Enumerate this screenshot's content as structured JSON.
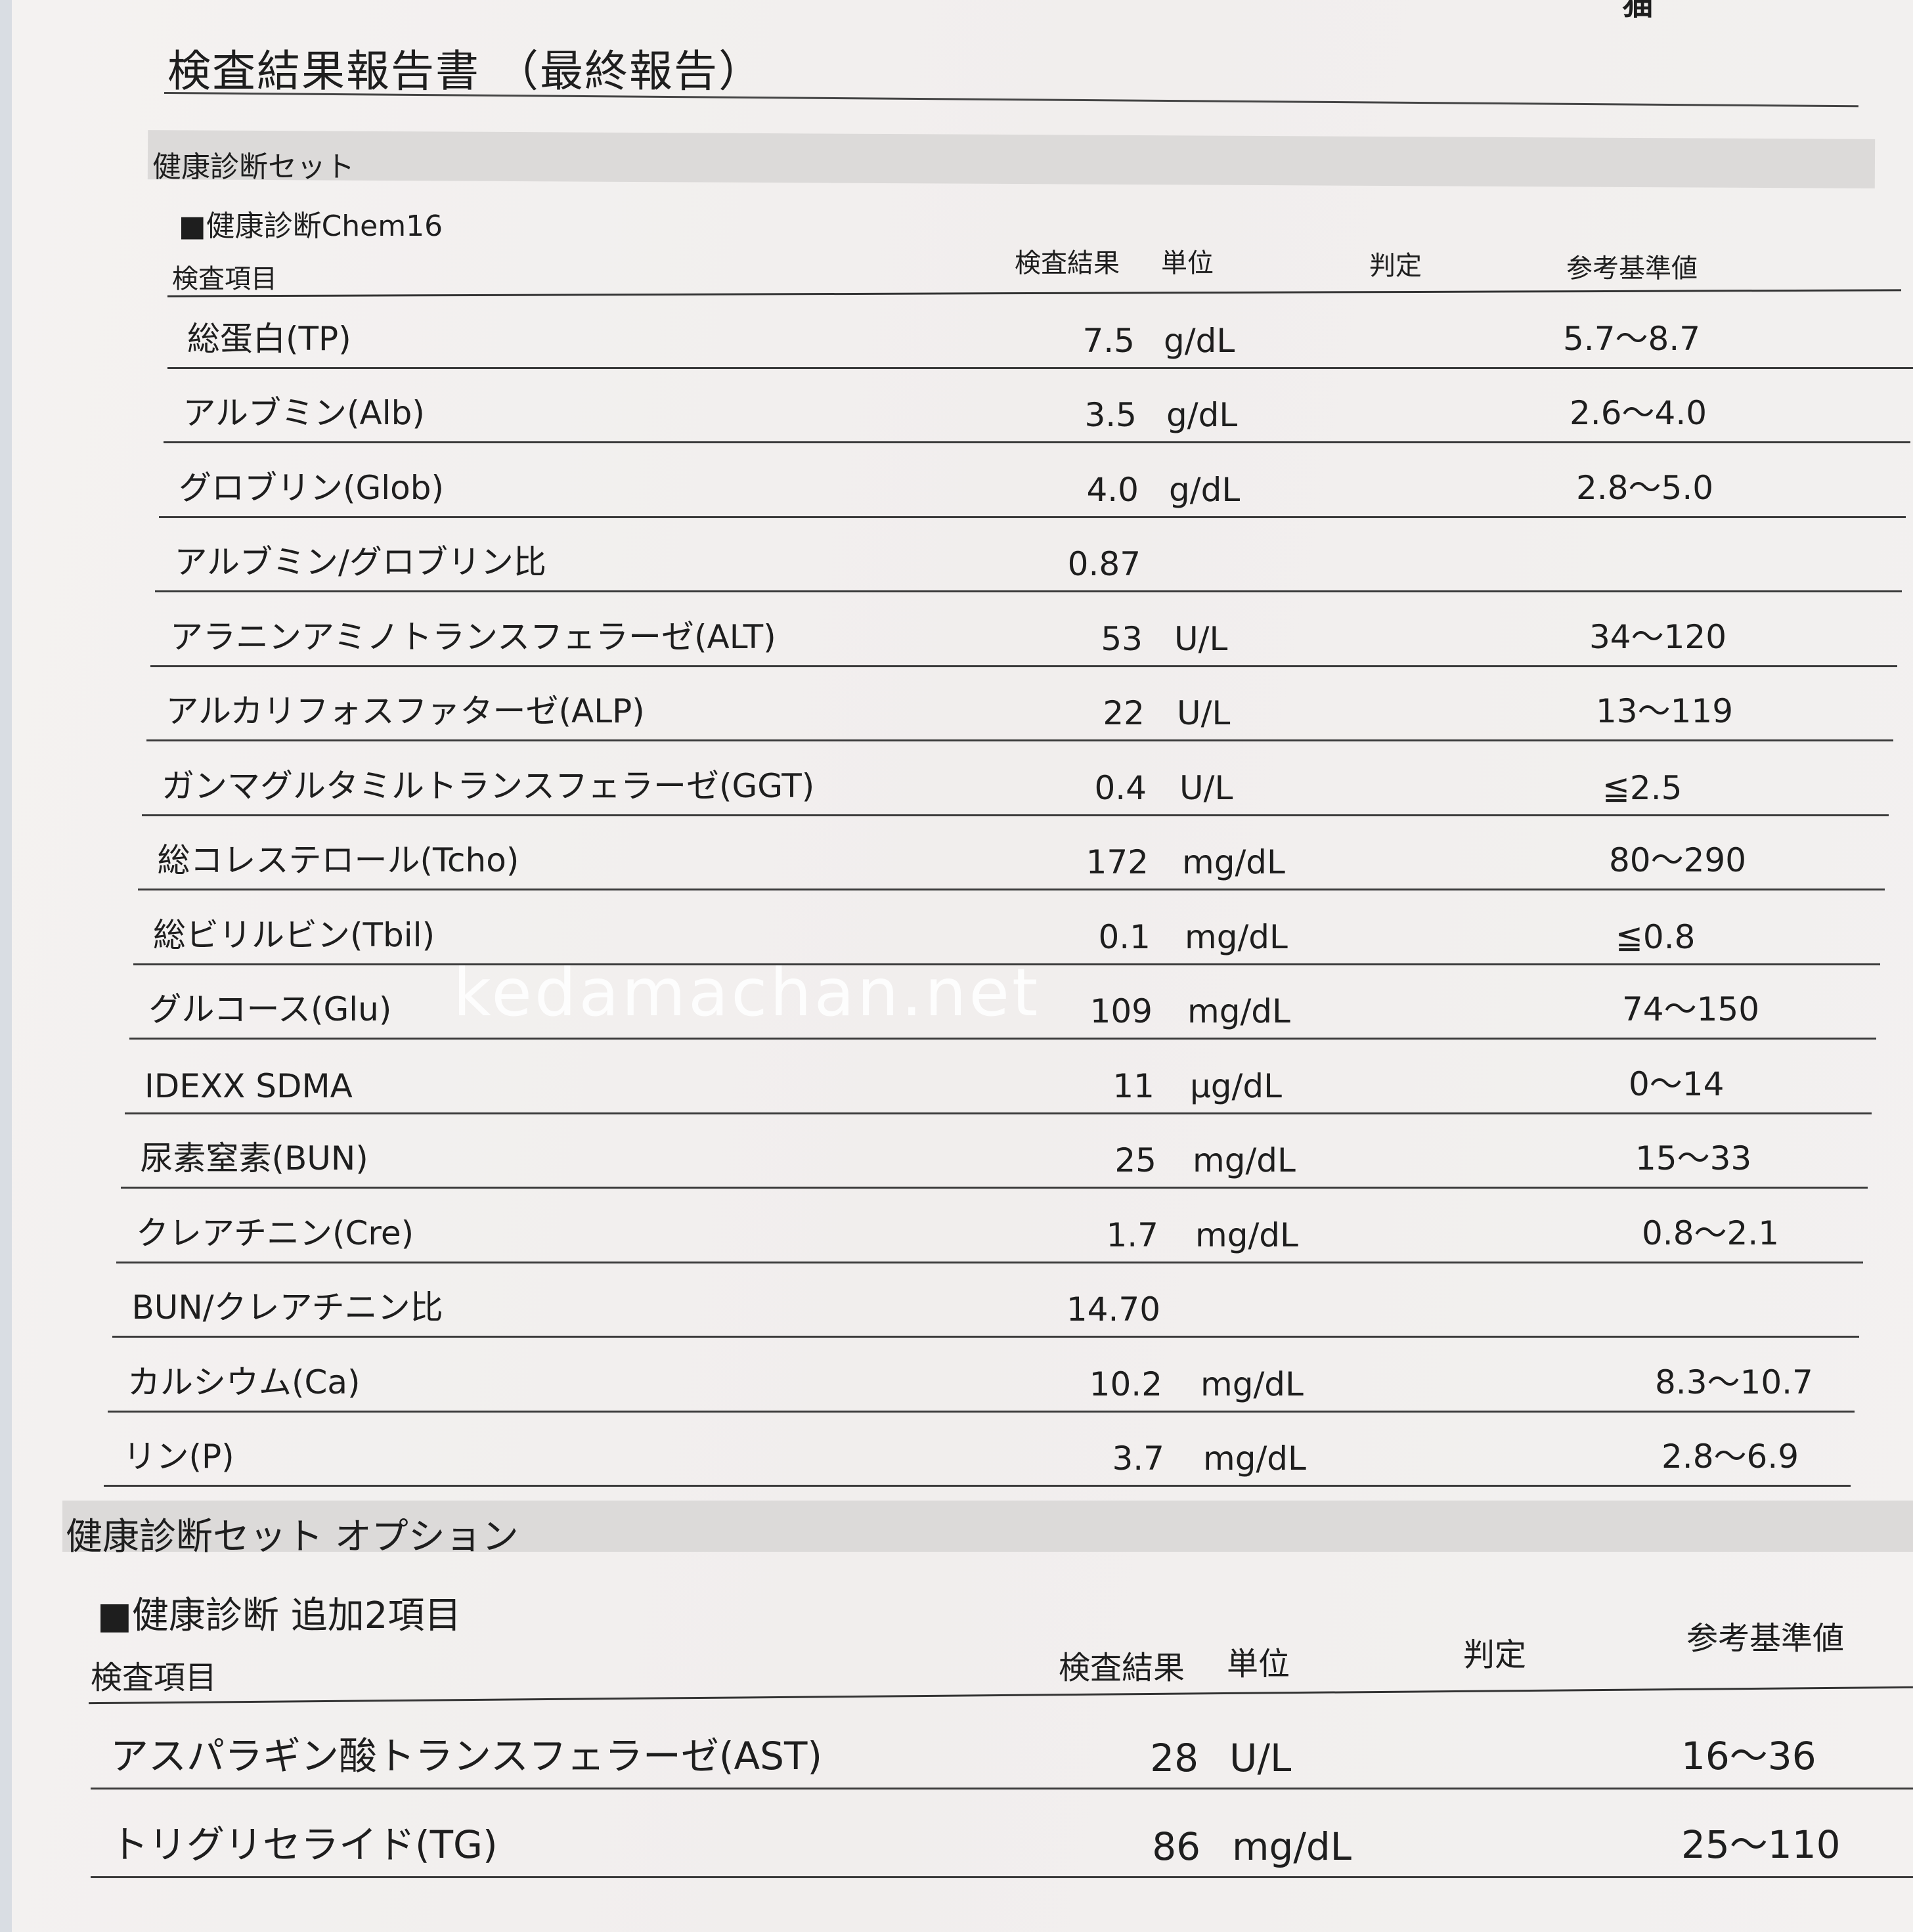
{
  "species": "猫",
  "title": "検査結果報告書 （最終報告）",
  "section1": {
    "title": "健康診断セット",
    "subtitle": "■健康診断Chem16",
    "headers": {
      "item": "検査項目",
      "result": "検査結果",
      "unit": "単位",
      "judgement": "判定",
      "reference": "参考基準値"
    },
    "rows": [
      {
        "name": "総蛋白(TP)",
        "result": "7.5",
        "unit": "g/dL",
        "reference": "5.7～8.7"
      },
      {
        "name": "アルブミン(Alb)",
        "result": "3.5",
        "unit": "g/dL",
        "reference": "2.6～4.0"
      },
      {
        "name": "グロブリン(Glob)",
        "result": "4.0",
        "unit": "g/dL",
        "reference": "2.8～5.0"
      },
      {
        "name": "アルブミン/グロブリン比",
        "result": "0.87",
        "unit": "",
        "reference": ""
      },
      {
        "name": "アラニンアミノトランスフェラーゼ(ALT)",
        "result": "53",
        "unit": "U/L",
        "reference": "34～120"
      },
      {
        "name": "アルカリフォスファターゼ(ALP)",
        "result": "22",
        "unit": "U/L",
        "reference": "13～119"
      },
      {
        "name": "ガンマグルタミルトランスフェラーゼ(GGT)",
        "result": "0.4",
        "unit": "U/L",
        "reference": "≦2.5"
      },
      {
        "name": "総コレステロール(Tcho)",
        "result": "172",
        "unit": "mg/dL",
        "reference": "80～290"
      },
      {
        "name": "総ビリルビン(Tbil)",
        "result": "0.1",
        "unit": "mg/dL",
        "reference": "≦0.8"
      },
      {
        "name": "グルコース(Glu)",
        "result": "109",
        "unit": "mg/dL",
        "reference": "74～150"
      },
      {
        "name": "IDEXX SDMA",
        "result": "11",
        "unit": "μg/dL",
        "reference": "0～14"
      },
      {
        "name": "尿素窒素(BUN)",
        "result": "25",
        "unit": "mg/dL",
        "reference": "15～33"
      },
      {
        "name": "クレアチニン(Cre)",
        "result": "1.7",
        "unit": "mg/dL",
        "reference": "0.8～2.1"
      },
      {
        "name": "BUN/クレアチニン比",
        "result": "14.70",
        "unit": "",
        "reference": ""
      },
      {
        "name": "カルシウム(Ca)",
        "result": "10.2",
        "unit": "mg/dL",
        "reference": "8.3～10.7"
      },
      {
        "name": "リン(P)",
        "result": "3.7",
        "unit": "mg/dL",
        "reference": "2.8～6.9"
      }
    ]
  },
  "section2": {
    "title": "健康診断セット オプション",
    "subtitle": "■健康診断 追加2項目",
    "headers": {
      "item": "検査項目",
      "result": "検査結果",
      "unit": "単位",
      "judgement": "判定",
      "reference": "参考基準値"
    },
    "rows": [
      {
        "name": "アスパラギン酸トランスフェラーゼ(AST)",
        "result": "28",
        "unit": "U/L",
        "reference": "16～36"
      },
      {
        "name": "トリグリセライド(TG)",
        "result": "86",
        "unit": "mg/dL",
        "reference": "25～110"
      }
    ]
  },
  "watermark": "kedamachan.net"
}
